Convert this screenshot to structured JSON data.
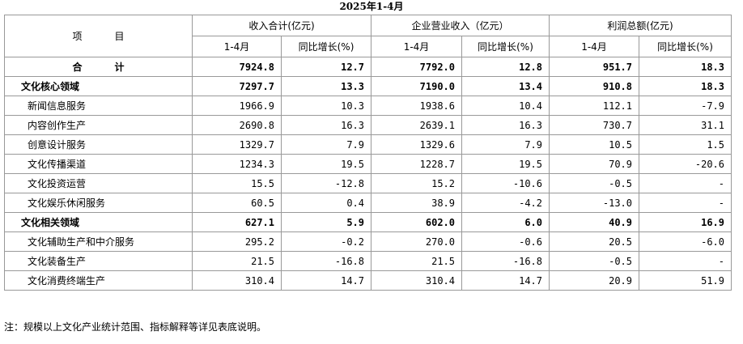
{
  "header": {
    "title": "2025年1-4月"
  },
  "table": {
    "corner": "项目",
    "groups": [
      {
        "name": "收入合计(亿元)",
        "sub": [
          "1-4月",
          "同比增长(%)"
        ]
      },
      {
        "name": "企业营业收入（亿元）",
        "sub": [
          "1-4月",
          "同比增长(%)"
        ]
      },
      {
        "name": "利润总额(亿元)",
        "sub": [
          "1-4月",
          "同比增长(%)"
        ]
      }
    ],
    "total": [
      "合计",
      "7924.8",
      "12.7",
      "7792.0",
      "12.8",
      "951.7",
      "18.3"
    ],
    "sections": [
      {
        "row": [
          "文化核心领域",
          "7297.7",
          "13.3",
          "7190.0",
          "13.4",
          "910.8",
          "18.3"
        ],
        "items": [
          [
            "新闻信息服务",
            "1966.9",
            "10.3",
            "1938.6",
            "10.4",
            "112.1",
            "-7.9"
          ],
          [
            "内容创作生产",
            "2690.8",
            "16.3",
            "2639.1",
            "16.3",
            "730.7",
            "31.1"
          ],
          [
            "创意设计服务",
            "1329.7",
            "7.9",
            "1329.6",
            "7.9",
            "10.5",
            "1.5"
          ],
          [
            "文化传播渠道",
            "1234.3",
            "19.5",
            "1228.7",
            "19.5",
            "70.9",
            "-20.6"
          ],
          [
            "文化投资运营",
            "15.5",
            "-12.8",
            "15.2",
            "-10.6",
            "-0.5",
            "-"
          ],
          [
            "文化娱乐休闲服务",
            "60.5",
            "0.4",
            "38.9",
            "-4.2",
            "-13.0",
            "-"
          ]
        ]
      },
      {
        "row": [
          "文化相关领域",
          "627.1",
          "5.9",
          "602.0",
          "6.0",
          "40.9",
          "16.9"
        ],
        "items": [
          [
            "文化辅助生产和中介服务",
            "295.2",
            "-0.2",
            "270.0",
            "-0.6",
            "20.5",
            "-6.0"
          ],
          [
            "文化装备生产",
            "21.5",
            "-16.8",
            "21.5",
            "-16.8",
            "-0.5",
            "-"
          ],
          [
            "文化消费终端生产",
            "310.4",
            "14.7",
            "310.4",
            "14.7",
            "20.9",
            "51.9"
          ]
        ]
      }
    ]
  },
  "note": "注：规模以上文化产业统计范围、指标解释等详见表底说明。"
}
